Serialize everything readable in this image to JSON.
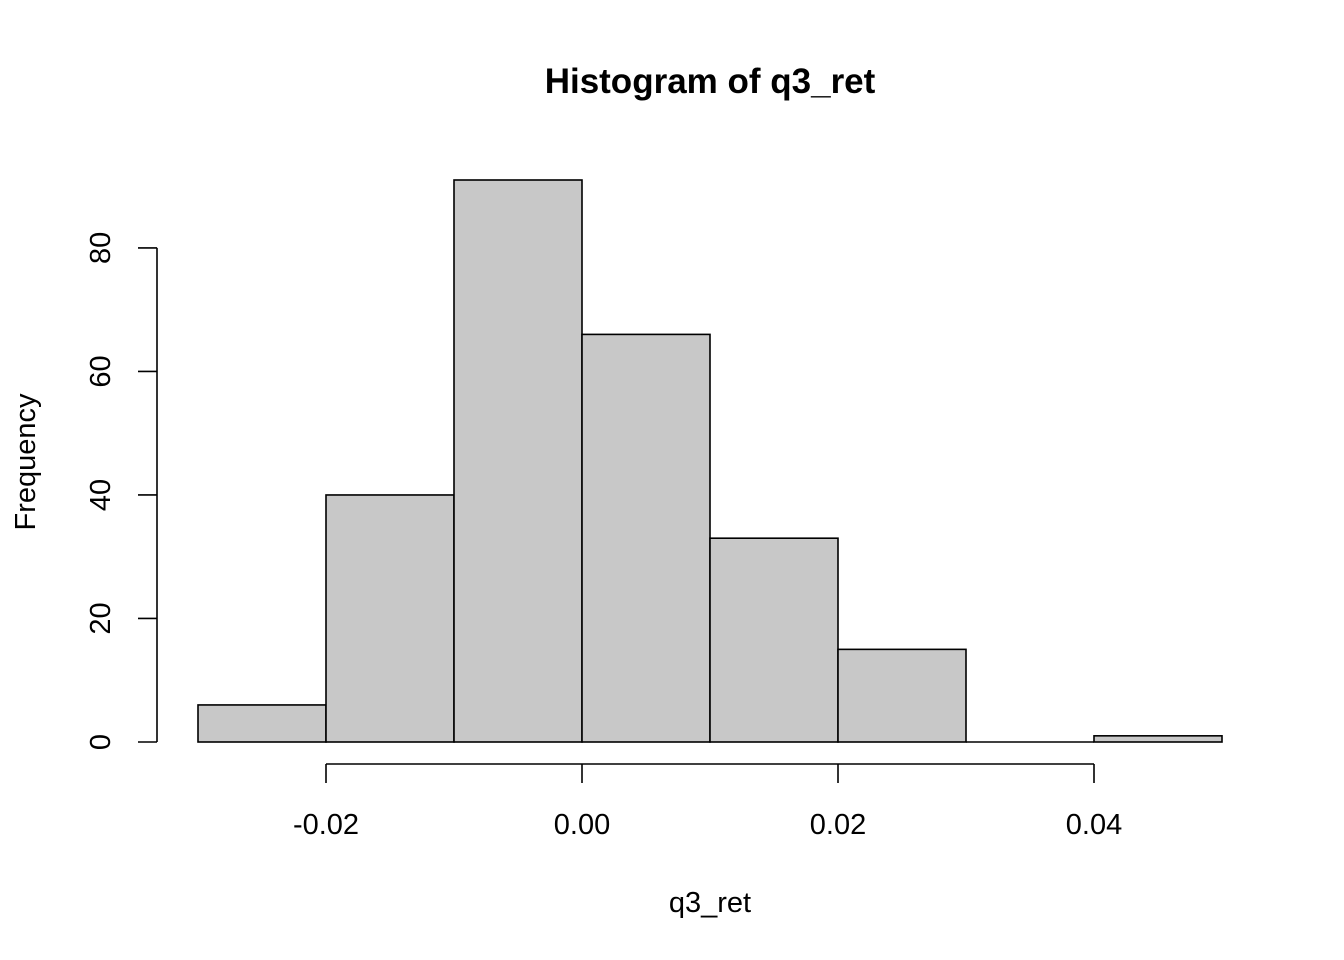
{
  "chart_data": {
    "type": "bar",
    "title": "Histogram of q3_ret",
    "xlabel": "q3_ret",
    "ylabel": "Frequency",
    "bins": [
      {
        "from": -0.03,
        "to": -0.02,
        "count": 6
      },
      {
        "from": -0.02,
        "to": -0.01,
        "count": 40
      },
      {
        "from": -0.01,
        "to": 0.0,
        "count": 91
      },
      {
        "from": 0.0,
        "to": 0.01,
        "count": 66
      },
      {
        "from": 0.01,
        "to": 0.02,
        "count": 33
      },
      {
        "from": 0.02,
        "to": 0.03,
        "count": 15
      },
      {
        "from": 0.03,
        "to": 0.04,
        "count": 0
      },
      {
        "from": 0.04,
        "to": 0.05,
        "count": 1
      }
    ],
    "x_ticks": [
      {
        "value": -0.02,
        "label": "-0.02"
      },
      {
        "value": 0.0,
        "label": "0.00"
      },
      {
        "value": 0.02,
        "label": "0.02"
      },
      {
        "value": 0.04,
        "label": "0.04"
      }
    ],
    "y_ticks": [
      {
        "value": 0,
        "label": "0"
      },
      {
        "value": 20,
        "label": "20"
      },
      {
        "value": 40,
        "label": "40"
      },
      {
        "value": 60,
        "label": "60"
      },
      {
        "value": 80,
        "label": "80"
      }
    ],
    "xlim": [
      -0.03,
      0.05
    ],
    "ylim": [
      0,
      91
    ],
    "bar_color": "#c8c8c8",
    "grid": false,
    "legend": "none"
  }
}
